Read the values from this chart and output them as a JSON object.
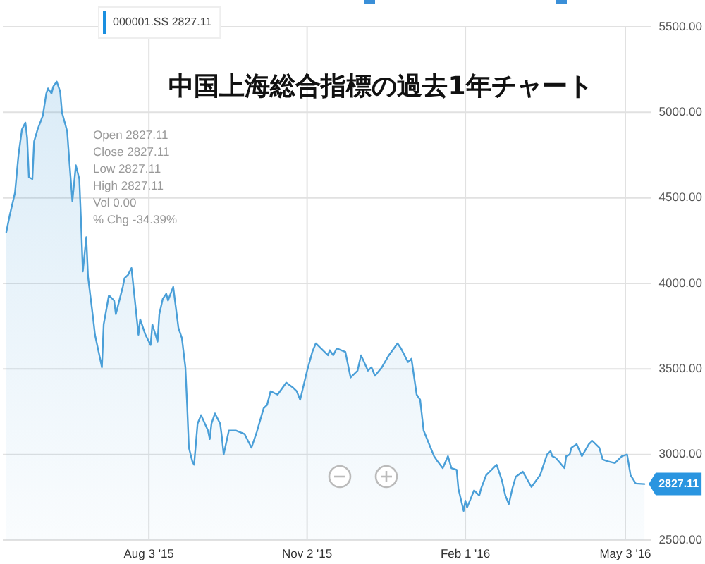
{
  "chart_data": {
    "type": "area",
    "title": "中国上海総合指標の過去1年チャート",
    "x": [
      "2015-05-13",
      "2015-05-15",
      "2015-05-18",
      "2015-05-20",
      "2015-05-22",
      "2015-05-24",
      "2015-05-25",
      "2015-05-26",
      "2015-05-28",
      "2015-05-29",
      "2015-05-31",
      "2015-06-03",
      "2015-06-05",
      "2015-06-06",
      "2015-06-08",
      "2015-06-09",
      "2015-06-11",
      "2015-06-13",
      "2015-06-14",
      "2015-06-17",
      "2015-06-18",
      "2015-06-20",
      "2015-06-22",
      "2015-06-24",
      "2015-06-25",
      "2015-06-26",
      "2015-06-28",
      "2015-06-29",
      "2015-07-02",
      "2015-07-03",
      "2015-07-07",
      "2015-07-08",
      "2015-07-11",
      "2015-07-14",
      "2015-07-15",
      "2015-07-19",
      "2015-07-20",
      "2015-07-22",
      "2015-07-24",
      "2015-07-27",
      "2015-07-28",
      "2015-07-29",
      "2015-08-01",
      "2015-08-04",
      "2015-08-05",
      "2015-08-08",
      "2015-08-09",
      "2015-08-11",
      "2015-08-13",
      "2015-08-14",
      "2015-08-17",
      "2015-08-20",
      "2015-08-22",
      "2015-08-24",
      "2015-08-25",
      "2015-08-26",
      "2015-08-28",
      "2015-08-29",
      "2015-08-31",
      "2015-09-02",
      "2015-09-06",
      "2015-09-07",
      "2015-09-08",
      "2015-09-10",
      "2015-09-13",
      "2015-09-14",
      "2015-09-15",
      "2015-09-18",
      "2015-09-22",
      "2015-09-27",
      "2015-10-01",
      "2015-10-04",
      "2015-10-08",
      "2015-10-10",
      "2015-10-12",
      "2015-10-16",
      "2015-10-21",
      "2015-10-25",
      "2015-10-27",
      "2015-10-29",
      "2015-11-02",
      "2015-11-05",
      "2015-11-07",
      "2015-11-11",
      "2015-11-14",
      "2015-11-15",
      "2015-11-17",
      "2015-11-19",
      "2015-11-24",
      "2015-11-27",
      "2015-12-01",
      "2015-12-03",
      "2015-12-07",
      "2015-12-09",
      "2015-12-11",
      "2015-12-15",
      "2015-12-19",
      "2015-12-24",
      "2015-12-26",
      "2015-12-30",
      "2016-01-01",
      "2016-01-04",
      "2016-01-06",
      "2016-01-08",
      "2016-01-12",
      "2016-01-14",
      "2016-01-16",
      "2016-01-19",
      "2016-01-22",
      "2016-01-24",
      "2016-01-27",
      "2016-01-28",
      "2016-01-31",
      "2016-02-01",
      "2016-02-02",
      "2016-02-06",
      "2016-02-09",
      "2016-02-10",
      "2016-02-13",
      "2016-02-17",
      "2016-02-19",
      "2016-02-22",
      "2016-02-24",
      "2016-02-26",
      "2016-02-28",
      "2016-03-01",
      "2016-03-05",
      "2016-03-10",
      "2016-03-15",
      "2016-03-19",
      "2016-03-21",
      "2016-03-22",
      "2016-03-24",
      "2016-03-29",
      "2016-03-30",
      "2016-04-01",
      "2016-04-02",
      "2016-04-05",
      "2016-04-08",
      "2016-04-12",
      "2016-04-14",
      "2016-04-18",
      "2016-04-20",
      "2016-04-23",
      "2016-04-27",
      "2016-05-01",
      "2016-05-04",
      "2016-05-06",
      "2016-05-09",
      "2016-05-14"
    ],
    "series": [
      {
        "color": "#4a9fd8",
        "values": [
          4300,
          4400,
          4530,
          4750,
          4900,
          4940,
          4850,
          4620,
          4610,
          4830,
          4900,
          4980,
          5110,
          5140,
          5110,
          5150,
          5180,
          5120,
          5000,
          4890,
          4750,
          4480,
          4690,
          4610,
          4360,
          4070,
          4270,
          4040,
          3790,
          3700,
          3510,
          3760,
          3930,
          3900,
          3820,
          3980,
          4030,
          4050,
          4090,
          3800,
          3700,
          3790,
          3700,
          3640,
          3760,
          3660,
          3820,
          3910,
          3940,
          3900,
          3980,
          3740,
          3680,
          3510,
          3290,
          3040,
          2960,
          2940,
          3180,
          3230,
          3140,
          3090,
          3180,
          3240,
          3180,
          3100,
          3000,
          3140,
          3140,
          3120,
          3040,
          3130,
          3270,
          3290,
          3370,
          3350,
          3420,
          3390,
          3370,
          3320,
          3490,
          3600,
          3650,
          3610,
          3580,
          3610,
          3580,
          3620,
          3600,
          3450,
          3490,
          3580,
          3490,
          3510,
          3460,
          3510,
          3580,
          3650,
          3620,
          3540,
          3560,
          3350,
          3320,
          3140,
          3040,
          2990,
          2960,
          2920,
          2990,
          2920,
          2910,
          2800,
          2670,
          2730,
          2690,
          2790,
          2760,
          2800,
          2880,
          2920,
          2940,
          2850,
          2760,
          2710,
          2800,
          2870,
          2900,
          2810,
          2880,
          3000,
          3020,
          2990,
          2980,
          2920,
          2990,
          3000,
          3040,
          3060,
          2990,
          3060,
          3080,
          3040,
          2970,
          2960,
          2950,
          2990,
          3000,
          2880,
          2830,
          2827.11
        ],
        "value_labels": [
          null,
          null,
          null,
          null,
          null,
          null,
          null,
          null,
          null,
          null,
          null,
          null,
          null,
          null,
          null,
          null,
          null,
          null,
          null,
          null,
          null,
          null,
          null,
          null,
          null,
          null,
          null,
          null,
          null,
          null,
          null,
          null,
          null,
          null,
          null,
          null,
          null,
          null,
          null,
          null,
          null,
          null,
          null,
          null,
          null,
          null,
          null,
          null,
          null,
          null,
          null,
          null,
          null,
          null,
          null,
          null,
          null,
          null,
          null,
          null,
          null,
          null,
          null,
          null,
          null,
          null,
          null,
          null,
          null,
          null,
          null,
          null,
          null,
          null,
          null,
          null,
          null,
          null,
          null,
          null,
          null,
          null,
          null,
          null,
          null,
          null,
          null,
          null,
          null,
          null,
          null,
          null,
          null,
          null,
          null,
          null,
          null,
          null,
          null,
          null,
          null,
          null,
          null,
          null,
          null,
          null,
          null,
          null,
          null,
          null,
          null,
          null,
          null,
          null,
          null,
          null,
          null,
          null,
          null,
          null,
          null,
          null,
          null,
          null,
          null,
          null,
          null,
          null,
          null,
          null,
          null,
          null,
          null,
          null,
          null,
          null,
          null,
          null,
          null,
          null,
          null,
          null,
          null,
          null,
          null,
          null,
          null,
          null,
          null,
          "2827.11"
        ]
      }
    ],
    "xlim": [
      "2015-05-11",
      "2016-05-18"
    ],
    "ylim": [
      2500,
      5500
    ],
    "xticks": [
      {
        "value": "2015-08-03",
        "label": "Aug 3 '15"
      },
      {
        "value": "2015-11-02",
        "label": "Nov 2 '15"
      },
      {
        "value": "2016-02-01",
        "label": "Feb 1 '16"
      },
      {
        "value": "2016-05-03",
        "label": "May 3 '16"
      }
    ],
    "yticks": [
      {
        "value": 2500,
        "label": "2500.00"
      },
      {
        "value": 3000,
        "label": "3000.00"
      },
      {
        "value": 3500,
        "label": "3500.00"
      },
      {
        "value": 4000,
        "label": "4000.00"
      },
      {
        "value": 4500,
        "label": "4500.00"
      },
      {
        "value": 5000,
        "label": "5000.00"
      },
      {
        "value": 5500,
        "label": "5500.00"
      }
    ],
    "grid": true,
    "annotations": [
      "000001.SS 2827.11",
      "Open 2827.11",
      "Close 2827.11",
      "Low 2827.11",
      "High 2827.11",
      "Vol 0.00",
      "% Chg -34.39%"
    ]
  }
}
